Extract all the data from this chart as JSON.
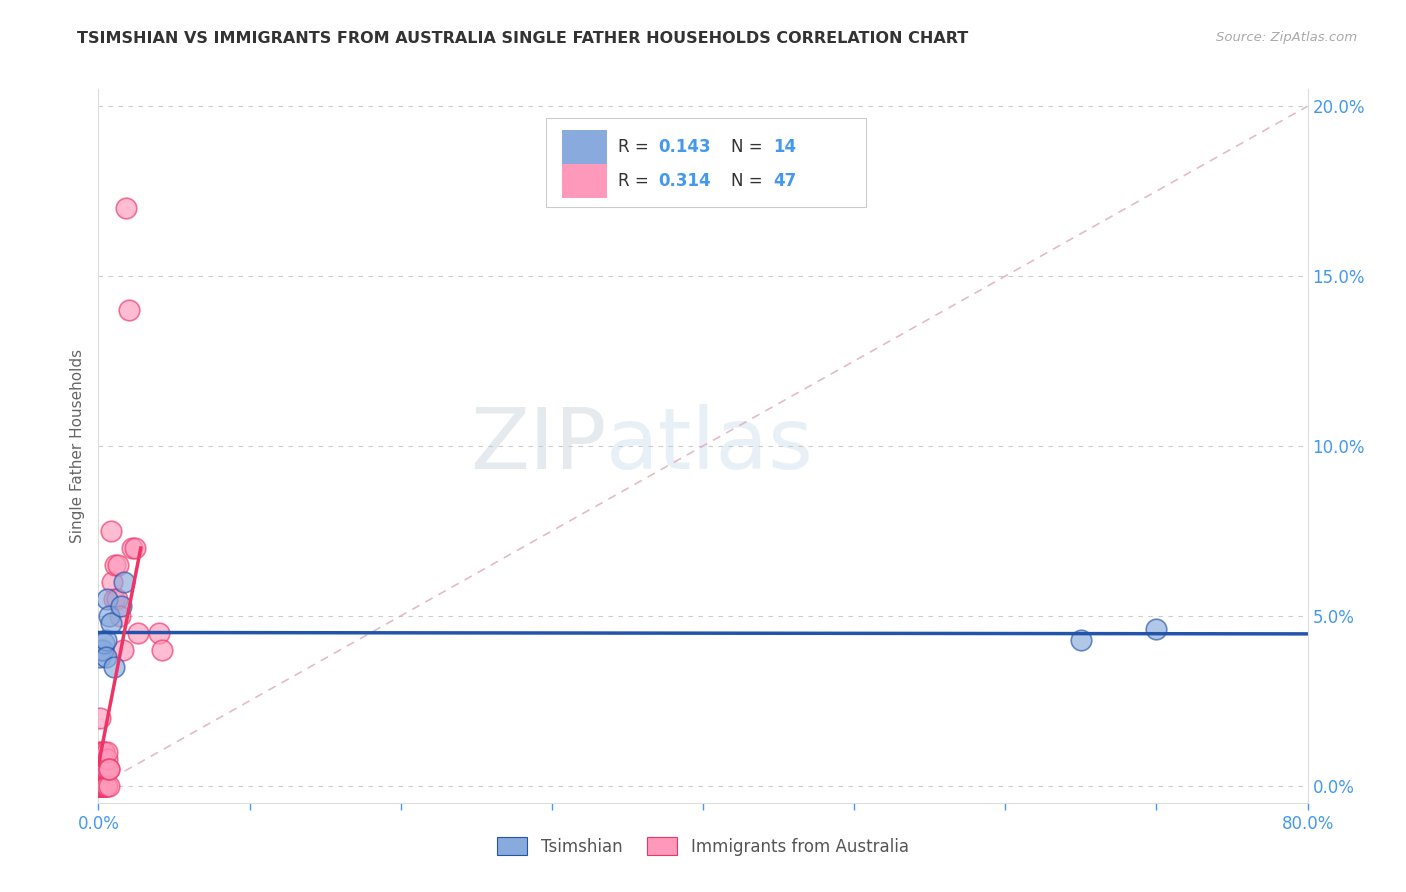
{
  "title": "TSIMSHIAN VS IMMIGRANTS FROM AUSTRALIA SINGLE FATHER HOUSEHOLDS CORRELATION CHART",
  "source": "Source: ZipAtlas.com",
  "ylabel": "Single Father Households",
  "xlim": [
    0,
    0.8
  ],
  "ylim": [
    -0.005,
    0.205
  ],
  "xticks": [
    0.0,
    0.1,
    0.2,
    0.3,
    0.4,
    0.5,
    0.6,
    0.7,
    0.8
  ],
  "xticklabels": [
    "0.0%",
    "",
    "",
    "",
    "",
    "",
    "",
    "",
    "80.0%"
  ],
  "yticks_right": [
    0.0,
    0.05,
    0.1,
    0.15,
    0.2
  ],
  "yticklabels_right": [
    "0.0%",
    "5.0%",
    "10.0%",
    "15.0%",
    "20.0%"
  ],
  "blue_color": "#88AADD",
  "pink_color": "#FF99BB",
  "blue_line_color": "#2255AA",
  "pink_line_color": "#EE3366",
  "axis_color": "#4499EE",
  "watermark_zip": "ZIP",
  "watermark_atlas": "atlas",
  "tsimshian_x": [
    0.001,
    0.002,
    0.003,
    0.004,
    0.005,
    0.005,
    0.006,
    0.007,
    0.008,
    0.01,
    0.015,
    0.017,
    0.65,
    0.7
  ],
  "tsimshian_y": [
    0.038,
    0.04,
    0.04,
    0.042,
    0.043,
    0.038,
    0.055,
    0.05,
    0.048,
    0.035,
    0.053,
    0.06,
    0.043,
    0.046
  ],
  "australia_x": [
    0.0,
    0.0,
    0.0,
    0.001,
    0.001,
    0.001,
    0.001,
    0.001,
    0.002,
    0.002,
    0.002,
    0.002,
    0.003,
    0.003,
    0.003,
    0.003,
    0.003,
    0.004,
    0.004,
    0.004,
    0.004,
    0.005,
    0.005,
    0.005,
    0.005,
    0.006,
    0.006,
    0.006,
    0.006,
    0.007,
    0.007,
    0.007,
    0.008,
    0.009,
    0.01,
    0.011,
    0.012,
    0.013,
    0.014,
    0.016,
    0.018,
    0.02,
    0.022,
    0.024,
    0.026,
    0.04,
    0.042
  ],
  "australia_y": [
    0.0,
    0.0,
    0.005,
    0.0,
    0.0,
    0.005,
    0.01,
    0.02,
    0.0,
    0.0,
    0.005,
    0.01,
    0.0,
    0.0,
    0.005,
    0.005,
    0.008,
    0.0,
    0.005,
    0.01,
    0.01,
    0.0,
    0.0,
    0.005,
    0.005,
    0.0,
    0.005,
    0.008,
    0.01,
    0.0,
    0.005,
    0.005,
    0.075,
    0.06,
    0.055,
    0.065,
    0.055,
    0.065,
    0.05,
    0.04,
    0.17,
    0.14,
    0.07,
    0.07,
    0.045,
    0.045,
    0.04
  ]
}
